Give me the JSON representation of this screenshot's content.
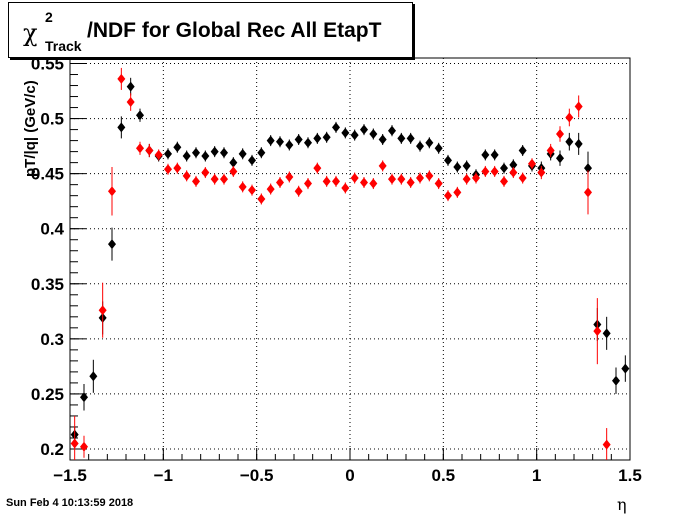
{
  "title": {
    "symbol": "χ",
    "sup": "2",
    "sub": "Track",
    "rest": "/NDF for Global Rec All EtapT"
  },
  "timestamp": "Sun Feb  4 10:13:59 2018",
  "colors": {
    "black_series": "#000000",
    "red_series": "#ff0000",
    "grid": "#000000"
  },
  "chart_data": {
    "type": "scatter",
    "xlabel": "η",
    "ylabel": "pT/|q| (GeV/c)",
    "xlim": [
      -1.5,
      1.5
    ],
    "ylim": [
      0.19,
      0.555
    ],
    "xticks": [
      "−1.5",
      "−1",
      "−0.5",
      "0",
      "0.5",
      "1",
      "1.5"
    ],
    "xtick_values": [
      -1.5,
      -1,
      -0.5,
      0,
      0.5,
      1,
      1.5
    ],
    "yticks": [
      "0.2",
      "0.25",
      "0.3",
      "0.35",
      "0.4",
      "0.45",
      "0.5",
      "0.55"
    ],
    "ytick_values": [
      0.2,
      0.25,
      0.3,
      0.35,
      0.4,
      0.45,
      0.5,
      0.55
    ],
    "grid": true,
    "series": [
      {
        "color": "#000000",
        "points": [
          [
            -1.475,
            0.213,
            0.007
          ],
          [
            -1.425,
            0.247,
            0.012
          ],
          [
            -1.375,
            0.266,
            0.015
          ],
          [
            -1.325,
            0.319,
            0.015
          ],
          [
            -1.275,
            0.386,
            0.015
          ],
          [
            -1.225,
            0.492,
            0.01
          ],
          [
            -1.175,
            0.529,
            0.008
          ],
          [
            -1.125,
            0.503,
            0.006
          ],
          [
            -1.075,
            0.471,
            0.006
          ],
          [
            -1.025,
            0.466,
            0.005
          ],
          [
            -0.975,
            0.468,
            0.005
          ],
          [
            -0.925,
            0.474,
            0.005
          ],
          [
            -0.875,
            0.466,
            0.005
          ],
          [
            -0.825,
            0.469,
            0.005
          ],
          [
            -0.775,
            0.466,
            0.005
          ],
          [
            -0.725,
            0.47,
            0.005
          ],
          [
            -0.675,
            0.469,
            0.005
          ],
          [
            -0.625,
            0.46,
            0.005
          ],
          [
            -0.575,
            0.468,
            0.005
          ],
          [
            -0.525,
            0.462,
            0.005
          ],
          [
            -0.475,
            0.469,
            0.005
          ],
          [
            -0.425,
            0.48,
            0.005
          ],
          [
            -0.375,
            0.479,
            0.005
          ],
          [
            -0.325,
            0.476,
            0.005
          ],
          [
            -0.275,
            0.481,
            0.005
          ],
          [
            -0.225,
            0.478,
            0.005
          ],
          [
            -0.175,
            0.482,
            0.005
          ],
          [
            -0.125,
            0.483,
            0.005
          ],
          [
            -0.075,
            0.492,
            0.005
          ],
          [
            -0.025,
            0.487,
            0.005
          ],
          [
            0.025,
            0.485,
            0.005
          ],
          [
            0.075,
            0.49,
            0.005
          ],
          [
            0.125,
            0.486,
            0.005
          ],
          [
            0.175,
            0.481,
            0.005
          ],
          [
            0.225,
            0.489,
            0.005
          ],
          [
            0.275,
            0.482,
            0.005
          ],
          [
            0.325,
            0.482,
            0.005
          ],
          [
            0.375,
            0.475,
            0.005
          ],
          [
            0.425,
            0.478,
            0.005
          ],
          [
            0.475,
            0.473,
            0.005
          ],
          [
            0.525,
            0.462,
            0.005
          ],
          [
            0.575,
            0.456,
            0.005
          ],
          [
            0.625,
            0.457,
            0.005
          ],
          [
            0.675,
            0.449,
            0.005
          ],
          [
            0.725,
            0.467,
            0.005
          ],
          [
            0.775,
            0.467,
            0.005
          ],
          [
            0.825,
            0.455,
            0.005
          ],
          [
            0.875,
            0.458,
            0.005
          ],
          [
            0.925,
            0.471,
            0.005
          ],
          [
            0.975,
            0.457,
            0.005
          ],
          [
            1.025,
            0.455,
            0.006
          ],
          [
            1.075,
            0.468,
            0.006
          ],
          [
            1.125,
            0.464,
            0.007
          ],
          [
            1.175,
            0.479,
            0.008
          ],
          [
            1.225,
            0.477,
            0.01
          ],
          [
            1.275,
            0.455,
            0.015
          ],
          [
            1.325,
            0.313,
            0.015
          ],
          [
            1.375,
            0.305,
            0.015
          ],
          [
            1.425,
            0.262,
            0.012
          ],
          [
            1.475,
            0.273,
            0.012
          ]
        ]
      },
      {
        "color": "#ff0000",
        "points": [
          [
            -1.475,
            0.205,
            0.025
          ],
          [
            -1.425,
            0.202,
            0.01
          ],
          [
            -1.325,
            0.326,
            0.025
          ],
          [
            -1.275,
            0.434,
            0.022
          ],
          [
            -1.225,
            0.536,
            0.01
          ],
          [
            -1.175,
            0.515,
            0.008
          ],
          [
            -1.125,
            0.473,
            0.006
          ],
          [
            -1.075,
            0.471,
            0.006
          ],
          [
            -1.025,
            0.467,
            0.005
          ],
          [
            -0.975,
            0.454,
            0.005
          ],
          [
            -0.925,
            0.455,
            0.005
          ],
          [
            -0.875,
            0.448,
            0.005
          ],
          [
            -0.825,
            0.443,
            0.005
          ],
          [
            -0.775,
            0.451,
            0.005
          ],
          [
            -0.725,
            0.445,
            0.005
          ],
          [
            -0.675,
            0.445,
            0.005
          ],
          [
            -0.625,
            0.452,
            0.005
          ],
          [
            -0.575,
            0.438,
            0.005
          ],
          [
            -0.525,
            0.435,
            0.005
          ],
          [
            -0.475,
            0.427,
            0.005
          ],
          [
            -0.425,
            0.436,
            0.005
          ],
          [
            -0.375,
            0.442,
            0.005
          ],
          [
            -0.325,
            0.447,
            0.005
          ],
          [
            -0.275,
            0.434,
            0.005
          ],
          [
            -0.225,
            0.441,
            0.005
          ],
          [
            -0.175,
            0.455,
            0.005
          ],
          [
            -0.125,
            0.443,
            0.005
          ],
          [
            -0.075,
            0.443,
            0.005
          ],
          [
            -0.025,
            0.437,
            0.005
          ],
          [
            0.025,
            0.446,
            0.005
          ],
          [
            0.075,
            0.442,
            0.005
          ],
          [
            0.125,
            0.441,
            0.005
          ],
          [
            0.175,
            0.457,
            0.005
          ],
          [
            0.225,
            0.445,
            0.005
          ],
          [
            0.275,
            0.445,
            0.005
          ],
          [
            0.325,
            0.442,
            0.005
          ],
          [
            0.375,
            0.446,
            0.005
          ],
          [
            0.425,
            0.448,
            0.005
          ],
          [
            0.475,
            0.441,
            0.005
          ],
          [
            0.525,
            0.43,
            0.005
          ],
          [
            0.575,
            0.433,
            0.005
          ],
          [
            0.625,
            0.445,
            0.005
          ],
          [
            0.675,
            0.446,
            0.005
          ],
          [
            0.725,
            0.452,
            0.005
          ],
          [
            0.775,
            0.452,
            0.005
          ],
          [
            0.825,
            0.443,
            0.005
          ],
          [
            0.875,
            0.451,
            0.005
          ],
          [
            0.925,
            0.446,
            0.005
          ],
          [
            0.975,
            0.459,
            0.005
          ],
          [
            1.025,
            0.451,
            0.006
          ],
          [
            1.075,
            0.471,
            0.006
          ],
          [
            1.125,
            0.486,
            0.007
          ],
          [
            1.175,
            0.501,
            0.008
          ],
          [
            1.225,
            0.511,
            0.01
          ],
          [
            1.275,
            0.433,
            0.02
          ],
          [
            1.325,
            0.307,
            0.03
          ],
          [
            1.375,
            0.204,
            0.015
          ]
        ]
      }
    ]
  }
}
